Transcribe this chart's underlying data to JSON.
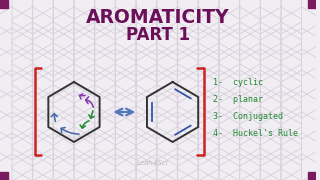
{
  "title_line1": "AROMATICITY",
  "title_line2": "PART 1",
  "title_color": "#6b1058",
  "bg_color": "#f0eef2",
  "bracket_color": "#cc2222",
  "arrow_color": "#5577bb",
  "list_items": [
    "1-  cyclic",
    "2-  planar",
    "3-  Conjugated",
    "4-  Huckel's Rule"
  ],
  "list_color": "#228833",
  "watermark": "Leah4Sci",
  "watermark_color": "#bbbbbb",
  "corner_color": "#7a1a5f",
  "hex_line_color": "#333333",
  "hex_bg_color": "#d8d0dc",
  "purple_arrow": "#8833aa",
  "green_arrow": "#228833",
  "blue_arrow": "#4466aa"
}
